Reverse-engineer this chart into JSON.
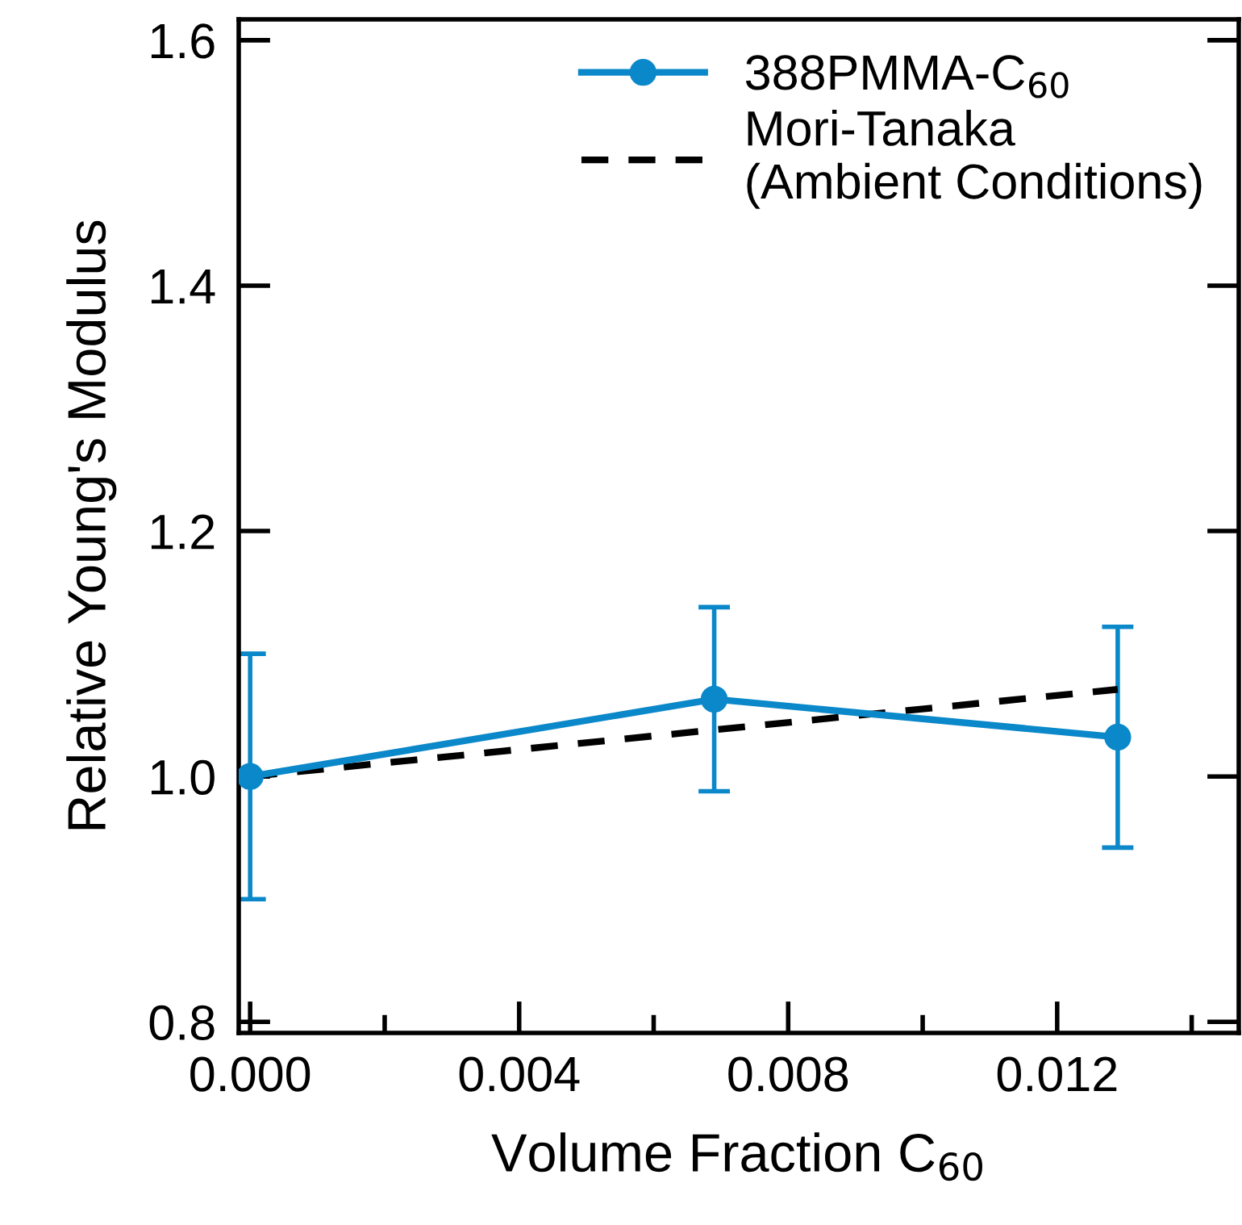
{
  "chart_data": {
    "type": "line",
    "xlabel": "Volume Fraction C$_{60}$",
    "ylabel": "Relative Young's Modulus",
    "series": [
      {
        "name": "388PMMA-C$_{60}$",
        "color": "#0a88c9",
        "x": [
          0.0,
          0.0069,
          0.0129
        ],
        "values": [
          1.0,
          1.063,
          1.032
        ],
        "errors": [
          0.1,
          0.075,
          0.09
        ],
        "marker": "circle",
        "line_style": "solid"
      },
      {
        "name": "Mori-Tanaka\n(Ambient Conditions)",
        "color": "#000000",
        "x": [
          0.0,
          0.0129
        ],
        "values": [
          1.0,
          1.071
        ],
        "marker": "none",
        "line_style": "dashed"
      }
    ],
    "xlim": [
      -0.00017,
      0.0147
    ],
    "ylim": [
      0.791,
      1.617
    ],
    "xticks": [
      {
        "value": 0.0,
        "label": "0.000"
      },
      {
        "value": 0.004,
        "label": "0.004"
      },
      {
        "value": 0.008,
        "label": "0.008"
      },
      {
        "value": 0.012,
        "label": "0.012"
      }
    ],
    "yticks": [
      {
        "value": 0.8,
        "label": "0.8"
      },
      {
        "value": 1.0,
        "label": "1.0"
      },
      {
        "value": 1.2,
        "label": "1.2"
      },
      {
        "value": 1.4,
        "label": "1.4"
      },
      {
        "value": 1.6,
        "label": "1.6"
      }
    ],
    "grid": false,
    "legend": "top right"
  }
}
